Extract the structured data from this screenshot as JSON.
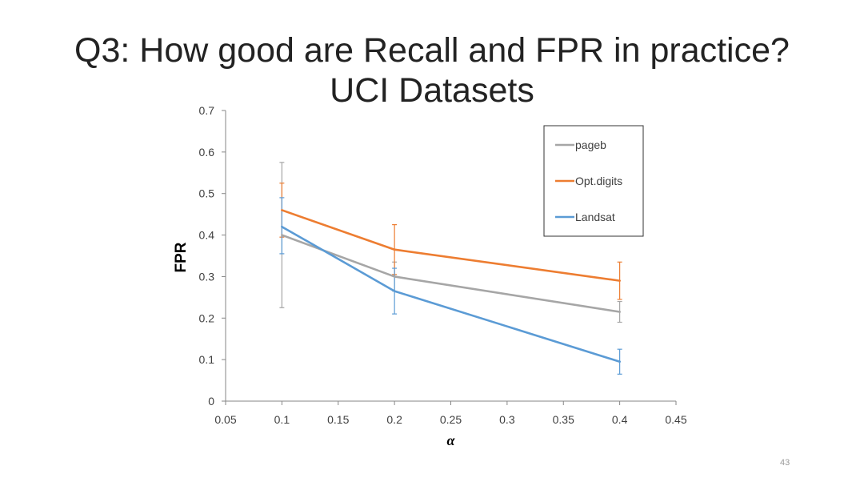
{
  "slide": {
    "title_line1": "Q3: How good are Recall and FPR in practice?",
    "title_line2": "UCI Datasets",
    "page_number": "43"
  },
  "chart_data": {
    "type": "line",
    "xlabel": "α",
    "ylabel": "FPR",
    "xlim": [
      0.05,
      0.45
    ],
    "ylim": [
      0,
      0.7
    ],
    "x_ticks": [
      "0.05",
      "0.1",
      "0.15",
      "0.2",
      "0.25",
      "0.3",
      "0.35",
      "0.4",
      "0.45"
    ],
    "y_ticks": [
      "0",
      "0.1",
      "0.2",
      "0.3",
      "0.4",
      "0.5",
      "0.6",
      "0.7"
    ],
    "grid": false,
    "legend_position": "top-right",
    "x": [
      0.1,
      0.2,
      0.4
    ],
    "series": [
      {
        "name": "pageb",
        "color": "#a6a6a6",
        "values": [
          0.4,
          0.3,
          0.215
        ],
        "error_low": [
          0.225,
          0.265,
          0.19
        ],
        "error_high": [
          0.575,
          0.335,
          0.24
        ]
      },
      {
        "name": "Opt.digits",
        "color": "#ed7d31",
        "values": [
          0.46,
          0.365,
          0.29
        ],
        "error_low": [
          0.395,
          0.305,
          0.245
        ],
        "error_high": [
          0.525,
          0.425,
          0.335
        ]
      },
      {
        "name": "Landsat",
        "color": "#5b9bd5",
        "values": [
          0.42,
          0.265,
          0.095
        ],
        "error_low": [
          0.355,
          0.21,
          0.065
        ],
        "error_high": [
          0.49,
          0.32,
          0.125
        ]
      }
    ]
  }
}
